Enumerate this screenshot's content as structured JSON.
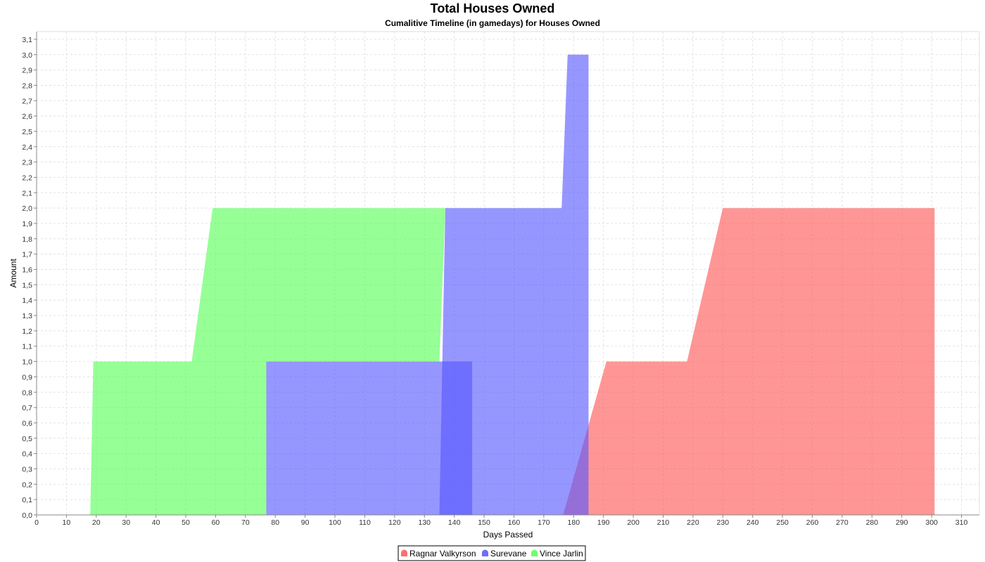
{
  "chart_data": {
    "type": "area",
    "title": "Total Houses Owned",
    "subtitle": "Cumalitive Timeline (in gamedays) for Houses Owned",
    "xlabel": "Days Passed",
    "ylabel": "Amount",
    "xlim": [
      0,
      316
    ],
    "ylim": [
      0,
      3.15
    ],
    "xticks": [
      0,
      10,
      20,
      30,
      40,
      50,
      60,
      70,
      80,
      90,
      100,
      110,
      120,
      130,
      140,
      150,
      160,
      170,
      180,
      190,
      200,
      210,
      220,
      230,
      240,
      250,
      260,
      270,
      280,
      290,
      300,
      310
    ],
    "yticks": [
      "0,0",
      "0,1",
      "0,2",
      "0,3",
      "0,4",
      "0,5",
      "0,6",
      "0,7",
      "0,8",
      "0,9",
      "1,0",
      "1,1",
      "1,2",
      "1,3",
      "1,4",
      "1,5",
      "1,6",
      "1,7",
      "1,8",
      "1,9",
      "2,0",
      "2,1",
      "2,2",
      "2,3",
      "2,4",
      "2,5",
      "2,6",
      "2,7",
      "2,8",
      "2,9",
      "3,0",
      "3,1"
    ],
    "grid": true,
    "legend_position": "bottom",
    "series": [
      {
        "name": "Ragnar Valkyrson",
        "color": "#ff5555",
        "points": [
          [
            176.5,
            0
          ],
          [
            191,
            1
          ],
          [
            218,
            1
          ],
          [
            230,
            2
          ],
          [
            301,
            2
          ],
          [
            301,
            0
          ]
        ]
      },
      {
        "name": "Surevane",
        "color": "#5555ff",
        "points": [
          [
            77,
            0
          ],
          [
            77,
            1
          ],
          [
            146,
            1
          ],
          [
            146,
            0
          ]
        ]
      },
      {
        "name": "Surevane",
        "color": "#5555ff",
        "points": [
          [
            135,
            0
          ],
          [
            137,
            2
          ],
          [
            176,
            2
          ],
          [
            178,
            3
          ],
          [
            185,
            3
          ],
          [
            185,
            0
          ]
        ]
      },
      {
        "name": "Vince Jarlin",
        "color": "#55ff55",
        "points": [
          [
            18,
            0
          ],
          [
            19,
            1
          ],
          [
            52,
            1
          ],
          [
            59,
            2
          ],
          [
            137,
            2
          ],
          [
            135,
            1
          ],
          [
            77,
            1
          ],
          [
            77,
            0
          ]
        ]
      }
    ],
    "legend": [
      {
        "name": "Ragnar Valkyrson",
        "color": "#ff5555"
      },
      {
        "name": "Surevane",
        "color": "#5555ff"
      },
      {
        "name": "Vince Jarlin",
        "color": "#55ff55"
      }
    ]
  }
}
